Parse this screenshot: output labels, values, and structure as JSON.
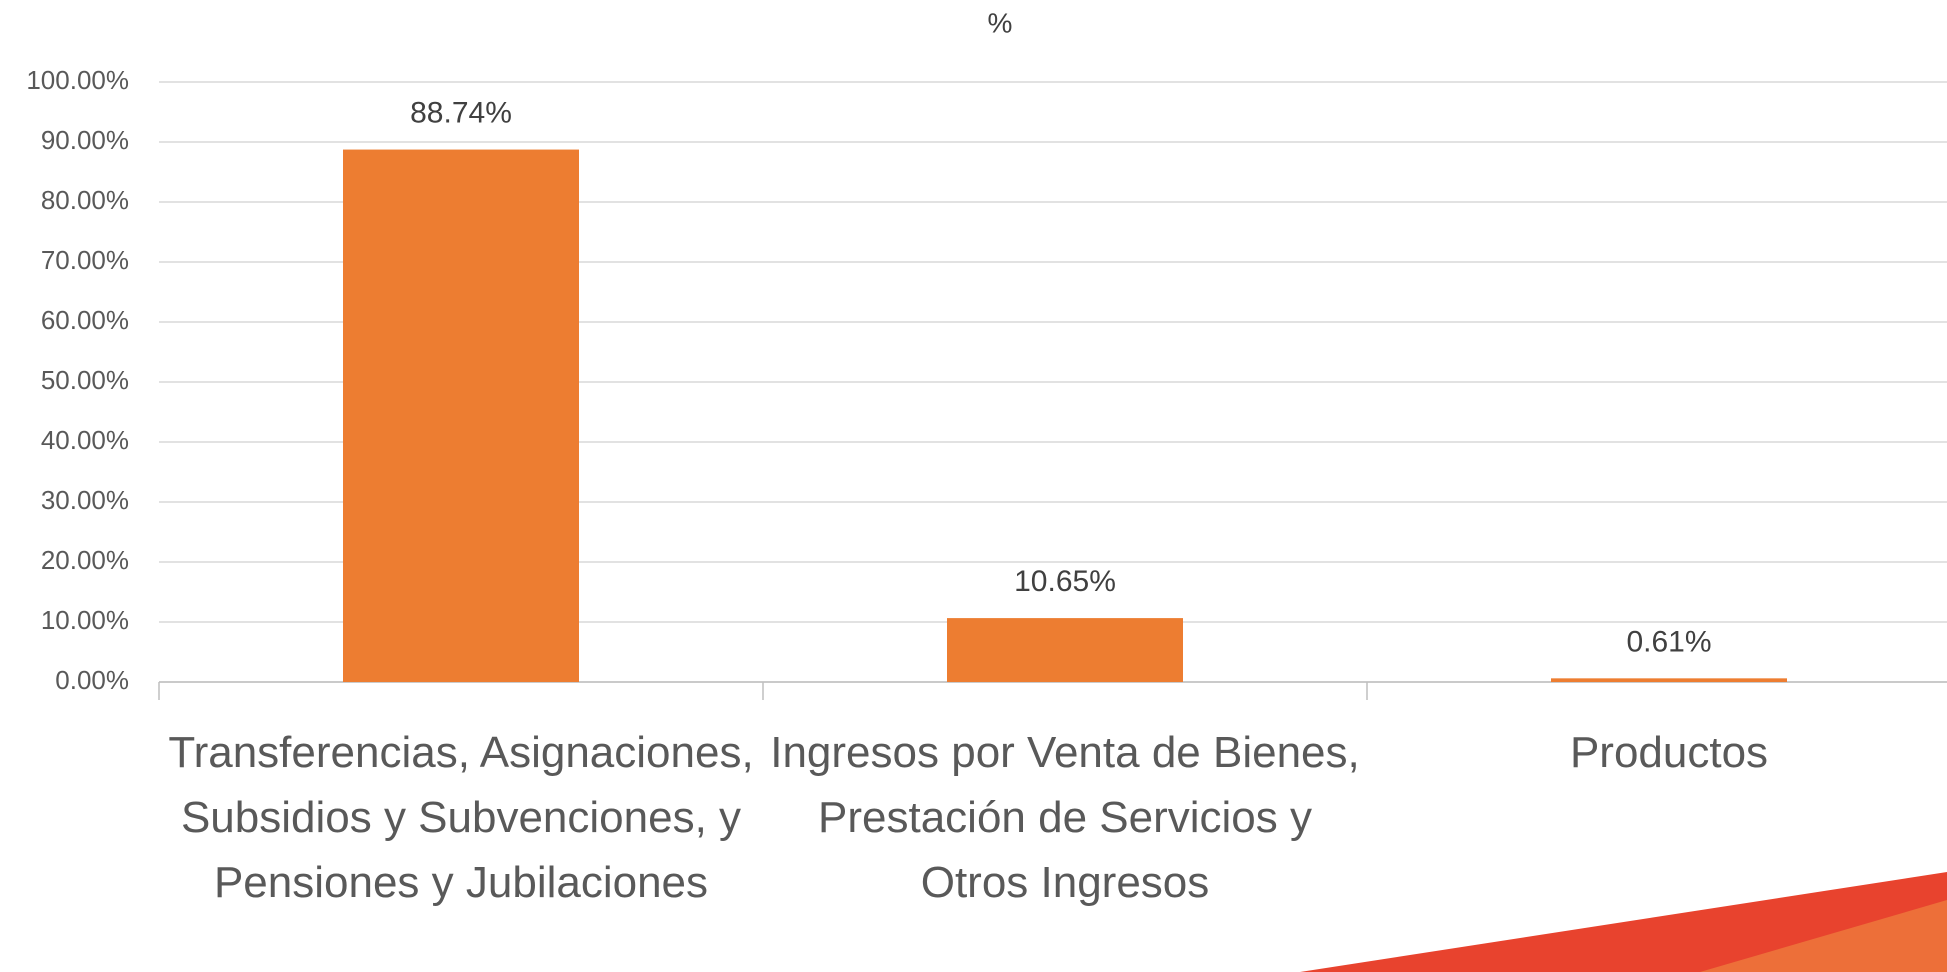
{
  "chart_data": {
    "type": "bar",
    "title": "%",
    "categories": [
      "Transferencias, Asignaciones, Subsidios y Subvenciones, y Pensiones y Jubilaciones",
      "Ingresos por Venta de Bienes, Prestación de Servicios y Otros Ingresos",
      "Productos"
    ],
    "values": [
      88.74,
      10.65,
      0.61
    ],
    "value_labels": [
      "88.74%",
      "10.65%",
      "0.61%"
    ],
    "color": "#ED7D31",
    "ylim": [
      0,
      100
    ],
    "yticks": [
      {
        "value": 0,
        "label": "0.00%"
      },
      {
        "value": 10,
        "label": "10.00%"
      },
      {
        "value": 20,
        "label": "20.00%"
      },
      {
        "value": 30,
        "label": "30.00%"
      },
      {
        "value": 40,
        "label": "40.00%"
      },
      {
        "value": 50,
        "label": "50.00%"
      },
      {
        "value": 60,
        "label": "60.00%"
      },
      {
        "value": 70,
        "label": "70.00%"
      },
      {
        "value": 80,
        "label": "80.00%"
      },
      {
        "value": 90,
        "label": "90.00%"
      },
      {
        "value": 100,
        "label": "100.00%"
      }
    ],
    "grid": true
  }
}
